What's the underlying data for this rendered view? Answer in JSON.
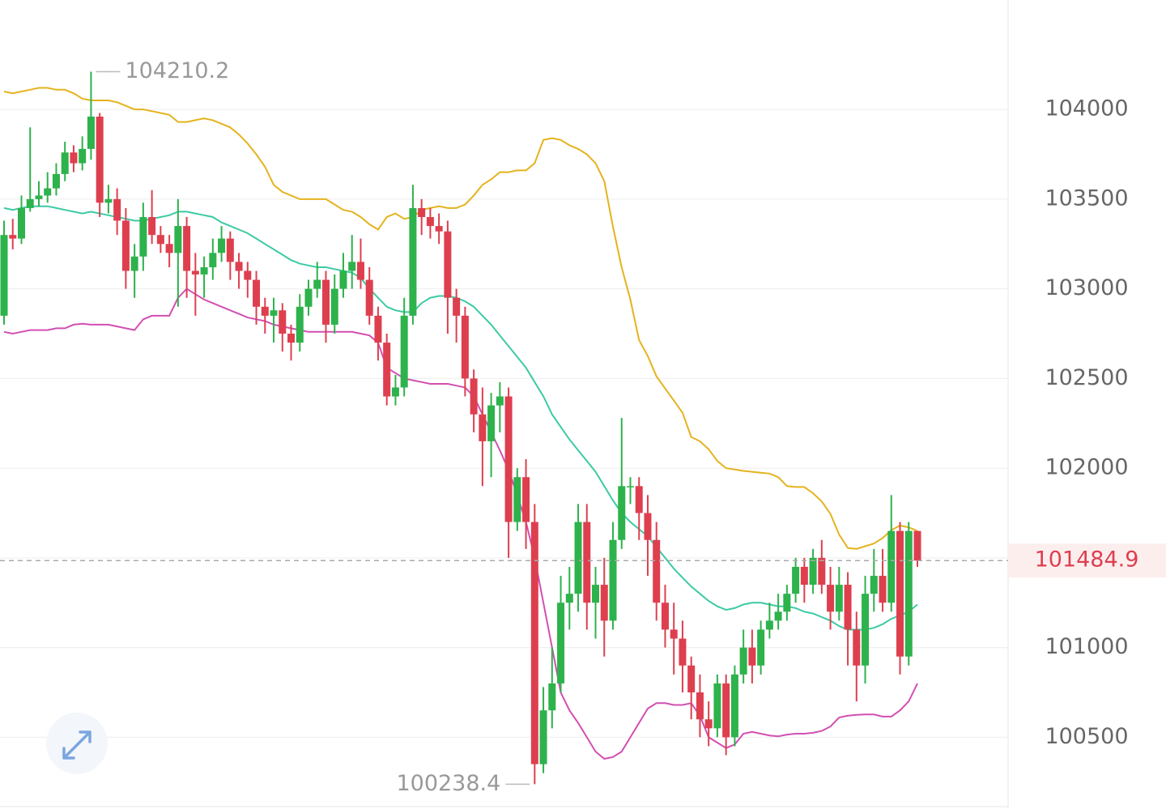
{
  "chart_data": {
    "type": "candlestick",
    "ylim": [
      100100,
      104610
    ],
    "yticks": [
      100500,
      101000,
      101500,
      102000,
      102500,
      103000,
      103500,
      104000
    ],
    "grid": true,
    "up_color": "#2eb24c",
    "down_color": "#de3f4f",
    "open": [
      102850,
      103300,
      103280,
      103450,
      103500,
      103520,
      103560,
      103640,
      103760,
      103700,
      103780,
      103960,
      103480,
      103500,
      103380,
      103100,
      103180,
      103400,
      103300,
      103250,
      103200,
      103350,
      103100,
      103080,
      103120,
      103200,
      103280,
      103150,
      103100,
      103050,
      102900,
      102850,
      102880,
      102750,
      102700,
      102900,
      103000,
      103050,
      102800,
      103000,
      103100,
      103150,
      103050,
      102850,
      102700,
      102400,
      102450,
      102850,
      103450,
      103400,
      103350,
      103320,
      102950,
      102850,
      102500,
      102300,
      102150,
      102350,
      102400,
      101700,
      101950,
      101700,
      100350,
      100650,
      100800,
      101250,
      101300,
      101700,
      101250,
      101350,
      101150,
      101600,
      101900,
      101900,
      101750,
      101600,
      101250,
      101100,
      101050,
      100900,
      100750,
      100600,
      100550,
      100800,
      100500,
      100850,
      101000,
      100900,
      101100,
      101150,
      101200,
      101300,
      101450,
      101350,
      101500,
      101350,
      101200,
      101350,
      101100,
      100900,
      101300,
      101400,
      101250,
      101650,
      100950,
      101650
    ],
    "high": [
      103380,
      103390,
      103520,
      103900,
      103600,
      103650,
      103700,
      103820,
      103800,
      103850,
      104210.2,
      103980,
      103580,
      103560,
      103450,
      103250,
      103480,
      103550,
      103350,
      103300,
      103500,
      103400,
      103200,
      103180,
      103280,
      103350,
      103320,
      103200,
      103150,
      103100,
      102950,
      102950,
      102920,
      102800,
      102970,
      103050,
      103150,
      103100,
      103080,
      103200,
      103300,
      103280,
      103120,
      102900,
      102750,
      102520,
      102950,
      103580,
      103500,
      103450,
      103420,
      103380,
      103000,
      102900,
      102550,
      102450,
      102420,
      102480,
      102450,
      102000,
      102050,
      101800,
      100780,
      101000,
      101400,
      101450,
      101800,
      101800,
      101450,
      101500,
      101700,
      102280,
      101950,
      101950,
      101850,
      101700,
      101350,
      101250,
      101150,
      100950,
      100850,
      100700,
      100850,
      100850,
      100900,
      101100,
      101100,
      101150,
      101250,
      101300,
      101350,
      101500,
      101500,
      101550,
      101600,
      101450,
      101450,
      101420,
      101200,
      101400,
      101550,
      101550,
      101850,
      101700,
      101700,
      101650
    ],
    "low": [
      102800,
      103220,
      103250,
      103430,
      103460,
      103480,
      103520,
      103600,
      103650,
      103660,
      103720,
      103400,
      103420,
      103300,
      103000,
      102950,
      103100,
      103250,
      103200,
      103120,
      102900,
      102950,
      102850,
      102950,
      103050,
      103150,
      103050,
      103000,
      102950,
      102800,
      102750,
      102700,
      102650,
      102600,
      102650,
      102850,
      102950,
      102700,
      102750,
      102950,
      103000,
      103000,
      102800,
      102600,
      102350,
      102350,
      102400,
      102800,
      103300,
      103280,
      103250,
      102750,
      102700,
      102400,
      102200,
      101900,
      101950,
      102200,
      101500,
      101650,
      101550,
      100238.4,
      100300,
      100550,
      100750,
      101100,
      101200,
      101100,
      101050,
      100950,
      101100,
      101550,
      101800,
      101600,
      101400,
      101150,
      101000,
      100850,
      100750,
      100600,
      100500,
      100450,
      100500,
      100400,
      100450,
      100800,
      100800,
      100850,
      101050,
      101100,
      101150,
      101250,
      101250,
      101300,
      101300,
      101100,
      101150,
      100900,
      100700,
      100800,
      101200,
      101200,
      101200,
      100850,
      100900,
      101450
    ],
    "close": [
      103300,
      103280,
      103450,
      103500,
      103520,
      103560,
      103640,
      103760,
      103700,
      103780,
      103960,
      103480,
      103500,
      103380,
      103100,
      103180,
      103400,
      103300,
      103250,
      103200,
      103350,
      103100,
      103080,
      103120,
      103200,
      103280,
      103150,
      103100,
      103050,
      102900,
      102850,
      102880,
      102750,
      102700,
      102900,
      103000,
      103050,
      102800,
      103000,
      103100,
      103150,
      103050,
      102850,
      102700,
      102400,
      102450,
      102850,
      103450,
      103400,
      103350,
      103320,
      102950,
      102850,
      102500,
      102300,
      102150,
      102350,
      102400,
      101700,
      101950,
      101700,
      100350,
      100650,
      100800,
      101250,
      101300,
      101700,
      101250,
      101350,
      101150,
      101600,
      101900,
      101900,
      101750,
      101600,
      101250,
      101100,
      101050,
      100900,
      100750,
      100600,
      100550,
      100800,
      100500,
      100850,
      101000,
      100900,
      101100,
      101150,
      101200,
      101300,
      101450,
      101350,
      101500,
      101350,
      101200,
      101350,
      101100,
      100900,
      101300,
      101400,
      101250,
      101650,
      100950,
      101650,
      101484.9
    ],
    "bands": [
      {
        "color": "#e5b31e",
        "values": [
          104100,
          104090,
          104100,
          104110,
          104120,
          104120,
          104110,
          104110,
          104090,
          104060,
          104050,
          104050,
          104050,
          104040,
          104020,
          104000,
          104000,
          103990,
          103980,
          103970,
          103930,
          103930,
          103940,
          103950,
          103940,
          103920,
          103900,
          103860,
          103810,
          103750,
          103680,
          103580,
          103540,
          103520,
          103500,
          103500,
          103500,
          103500,
          103470,
          103440,
          103430,
          103400,
          103360,
          103330,
          103400,
          103420,
          103390,
          103400,
          103440,
          103450,
          103460,
          103450,
          103450,
          103470,
          103520,
          103580,
          103610,
          103650,
          103650,
          103660,
          103660,
          103700,
          103830,
          103840,
          103830,
          103800,
          103780,
          103750,
          103700,
          103600,
          103346,
          103120,
          102940,
          102715,
          102625,
          102512,
          102444,
          102377,
          102309,
          102174,
          102150,
          102106,
          102040,
          102000,
          101993,
          101985,
          101980,
          101975,
          101970,
          101950,
          101900,
          101895,
          101895,
          101860,
          101815,
          101745,
          101630,
          101555,
          101550,
          101565,
          101580,
          101610,
          101655,
          101680,
          101670,
          101650
        ]
      },
      {
        "color": "#3ccaa4",
        "values": [
          103450,
          103440,
          103450,
          103460,
          103460,
          103460,
          103450,
          103440,
          103430,
          103420,
          103430,
          103420,
          103410,
          103400,
          103390,
          103380,
          103380,
          103390,
          103400,
          103410,
          103430,
          103430,
          103420,
          103410,
          103400,
          103370,
          103350,
          103330,
          103310,
          103280,
          103250,
          103220,
          103190,
          103160,
          103140,
          103130,
          103120,
          103120,
          103110,
          103100,
          103090,
          103060,
          103000,
          102950,
          102900,
          102880,
          102870,
          102870,
          102920,
          102950,
          102960,
          102960,
          102950,
          102930,
          102900,
          102850,
          102800,
          102740,
          102680,
          102620,
          102560,
          102480,
          102400,
          102300,
          102230,
          102160,
          102100,
          102040,
          101980,
          101900,
          101820,
          101750,
          101700,
          101660,
          101620,
          101560,
          101500,
          101440,
          101390,
          101340,
          101300,
          101260,
          101230,
          101210,
          101220,
          101240,
          101250,
          101250,
          101240,
          101230,
          101230,
          101220,
          101200,
          101190,
          101170,
          101150,
          101120,
          101100,
          101100,
          101100,
          101110,
          101130,
          101160,
          101180,
          101200,
          101240
        ]
      },
      {
        "color": "#d24fb2",
        "values": [
          102760,
          102750,
          102760,
          102770,
          102770,
          102770,
          102780,
          102780,
          102800,
          102805,
          102800,
          102800,
          102800,
          102790,
          102780,
          102770,
          102830,
          102850,
          102850,
          102850,
          102950,
          103000,
          102970,
          102940,
          102920,
          102900,
          102880,
          102860,
          102840,
          102830,
          102820,
          102800,
          102790,
          102780,
          102770,
          102760,
          102760,
          102760,
          102760,
          102760,
          102760,
          102750,
          102740,
          102700,
          102560,
          102530,
          102500,
          102490,
          102480,
          102470,
          102470,
          102470,
          102460,
          102450,
          102400,
          102300,
          102200,
          102100,
          101990,
          101850,
          101700,
          101500,
          101250,
          101000,
          100750,
          100650,
          100580,
          100500,
          100420,
          100380,
          100390,
          100420,
          100500,
          100580,
          100660,
          100690,
          100690,
          100680,
          100680,
          100690,
          100620,
          100500,
          100470,
          100440,
          100460,
          100520,
          100530,
          100520,
          100510,
          100505,
          100515,
          100520,
          100520,
          100525,
          100535,
          100560,
          100610,
          100620,
          100625,
          100627,
          100627,
          100615,
          100615,
          100650,
          100700,
          100800
        ]
      }
    ]
  }
}
